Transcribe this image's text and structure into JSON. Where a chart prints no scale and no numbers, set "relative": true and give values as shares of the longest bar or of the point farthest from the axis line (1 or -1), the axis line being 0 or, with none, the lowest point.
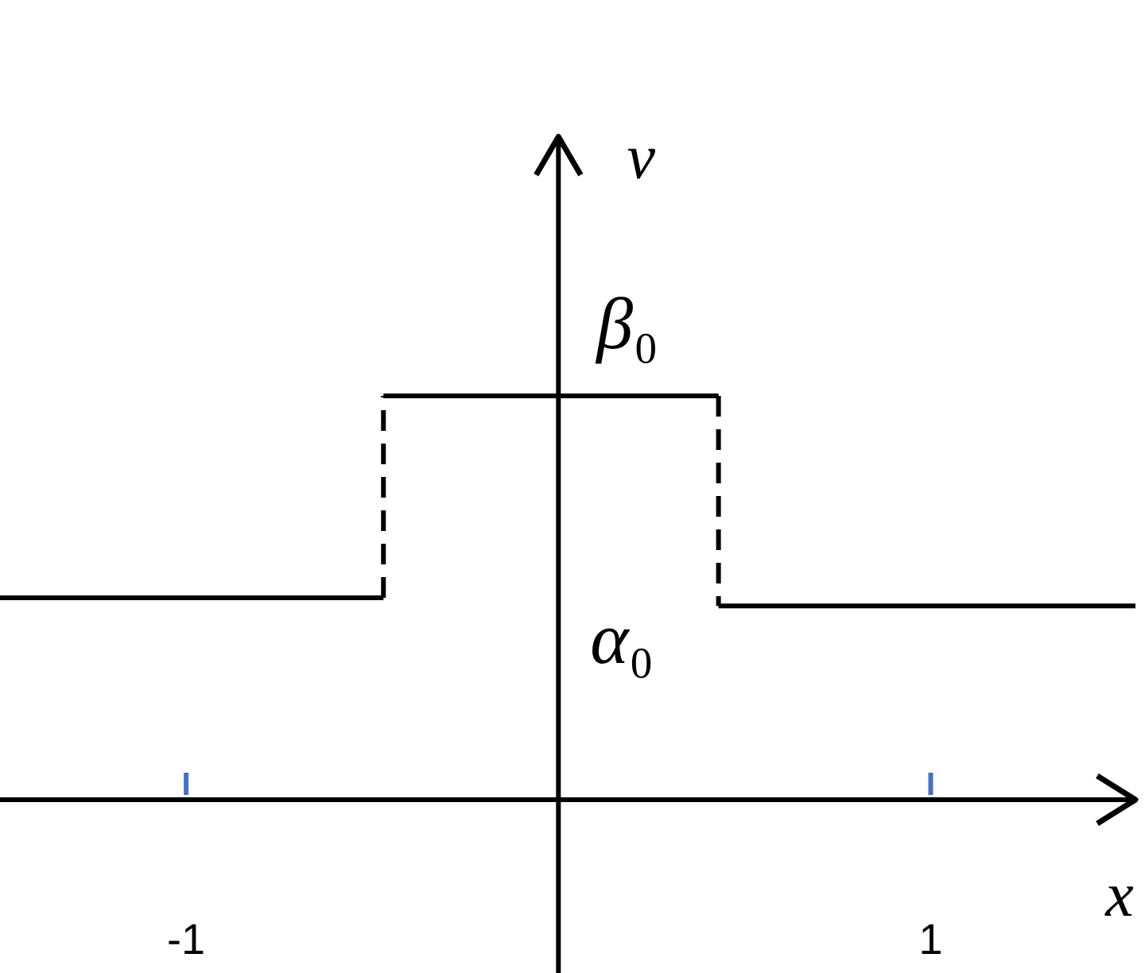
{
  "chart_data": {
    "type": "line",
    "xlabel": "x",
    "ylabel": "v",
    "relative": true,
    "xlim": [
      -1.5,
      1.55
    ],
    "xticks": [
      -1,
      1
    ],
    "line_style": "solid",
    "series": [
      {
        "color": "#000000",
        "x": [
          -1.5,
          -0.47
        ],
        "values": [
          0.5,
          0.5
        ]
      },
      {
        "color": "#000000",
        "x": [
          -0.47,
          -0.47
        ],
        "values": [
          0.5,
          1
        ],
        "line_style": "dashed"
      },
      {
        "color": "#000000",
        "x": [
          -0.47,
          0.43
        ],
        "values": [
          1,
          1
        ]
      },
      {
        "color": "#000000",
        "x": [
          0.43,
          0.43
        ],
        "values": [
          1,
          0.48
        ],
        "line_style": "dashed"
      },
      {
        "color": "#000000",
        "x": [
          0.43,
          1.55
        ],
        "values": [
          0.48,
          0.48
        ]
      }
    ],
    "annotations": [
      {
        "text": "β₀",
        "x": 0,
        "y": 1
      },
      "α₀"
    ]
  }
}
